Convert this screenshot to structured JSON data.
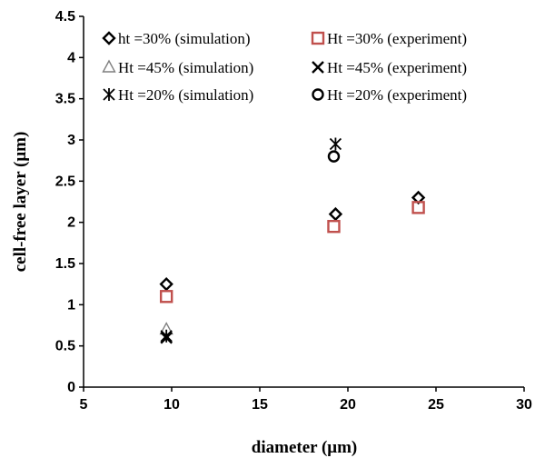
{
  "chart_data": {
    "type": "scatter",
    "title": "",
    "xlabel": "diameter (μm)",
    "ylabel": "cell-free layer (μm)",
    "xlim": [
      5,
      30
    ],
    "ylim": [
      0,
      4.5
    ],
    "xticks": [
      5,
      10,
      15,
      20,
      25,
      30
    ],
    "yticks": [
      0,
      0.5,
      1,
      1.5,
      2,
      2.5,
      3,
      3.5,
      4,
      4.5
    ],
    "xtick_labels": [
      "5",
      "10",
      "15",
      "20",
      "25",
      "30"
    ],
    "ytick_labels": [
      "0",
      "0.5",
      "1",
      "1.5",
      "2",
      "2.5",
      "3",
      "3.5",
      "4",
      "4.5"
    ],
    "grid": false,
    "legend_position": "top",
    "series": [
      {
        "name": "ht =30% (simulation)",
        "marker": "diamond",
        "color": "#000000",
        "x": [
          9.7,
          19.3,
          24
        ],
        "y": [
          1.25,
          2.1,
          2.3
        ]
      },
      {
        "name": "Ht =30% (experiment)",
        "marker": "square",
        "color": "#c0504d",
        "x": [
          9.7,
          19.2,
          24
        ],
        "y": [
          1.1,
          1.95,
          2.18
        ]
      },
      {
        "name": "Ht =45% (simulation)",
        "marker": "triangle",
        "color": "#7f7f7f",
        "x": [
          9.7
        ],
        "y": [
          0.7
        ]
      },
      {
        "name": "Ht =45% (experiment)",
        "marker": "x",
        "color": "#000000",
        "x": [
          9.7
        ],
        "y": [
          0.6
        ]
      },
      {
        "name": "Ht =20% (simulation)",
        "marker": "star",
        "color": "#000000",
        "x": [
          9.7,
          19.3
        ],
        "y": [
          0.62,
          2.95
        ]
      },
      {
        "name": "Ht =20% (experiment)",
        "marker": "circle",
        "color": "#000000",
        "x": [
          19.2
        ],
        "y": [
          2.8
        ]
      }
    ]
  }
}
